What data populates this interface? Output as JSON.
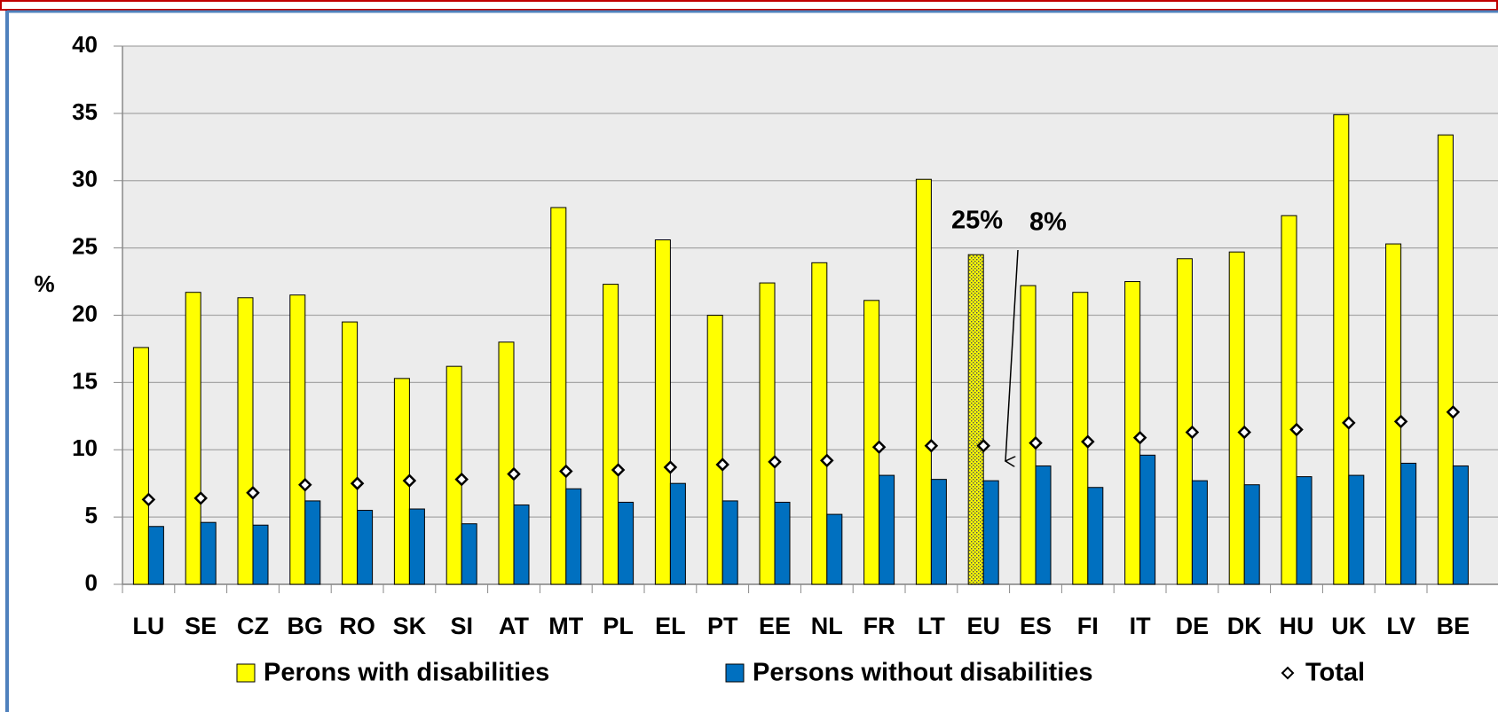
{
  "chart_data": {
    "type": "bar",
    "ylabel": "%",
    "categories": [
      "LU",
      "SE",
      "CZ",
      "BG",
      "RO",
      "SK",
      "SI",
      "AT",
      "MT",
      "PL",
      "EL",
      "PT",
      "EE",
      "NL",
      "FR",
      "LT",
      "EU",
      "ES",
      "FI",
      "IT",
      "DE",
      "DK",
      "HU",
      "UK",
      "LV",
      "BE"
    ],
    "series": [
      {
        "name": "Perons with disabilities",
        "color": "#ffff00",
        "values": [
          17.6,
          21.7,
          21.3,
          21.5,
          19.5,
          15.3,
          16.2,
          18.0,
          28.0,
          22.3,
          25.6,
          20.0,
          22.4,
          23.9,
          21.1,
          30.1,
          24.5,
          22.2,
          21.7,
          22.5,
          24.2,
          24.7,
          27.4,
          34.9,
          25.3,
          33.4
        ]
      },
      {
        "name": "Persons without disabilities",
        "color": "#0070c0",
        "values": [
          4.3,
          4.6,
          4.4,
          6.2,
          5.5,
          5.6,
          4.5,
          5.9,
          7.1,
          6.1,
          7.5,
          6.2,
          6.1,
          5.2,
          8.1,
          7.8,
          7.7,
          8.8,
          7.2,
          9.6,
          7.7,
          7.4,
          8.0,
          8.1,
          9.0,
          8.8
        ]
      },
      {
        "name": "Total",
        "color": "#ffffff",
        "marker": "diamond",
        "values": [
          6.3,
          6.4,
          6.8,
          7.4,
          7.5,
          7.7,
          7.8,
          8.2,
          8.4,
          8.5,
          8.7,
          8.9,
          9.1,
          9.2,
          10.2,
          10.3,
          10.3,
          10.5,
          10.6,
          10.9,
          11.3,
          11.3,
          11.5,
          12.0,
          12.1,
          12.8
        ]
      }
    ],
    "highlight": "EU",
    "annotations": [
      "25%",
      "8%"
    ],
    "ylim": [
      0,
      40
    ],
    "yticks": [
      0,
      5,
      10,
      15,
      20,
      25,
      30,
      35,
      40
    ],
    "grid": true
  }
}
